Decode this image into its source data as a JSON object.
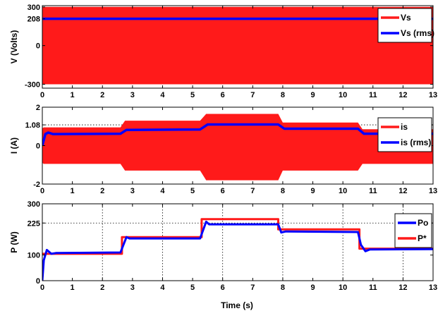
{
  "chart_data": [
    {
      "type": "line",
      "ylabel": "V (Volts)",
      "xlim": [
        0,
        13
      ],
      "ylim": [
        -330,
        310
      ],
      "xticks": [
        0,
        1,
        2,
        3,
        4,
        5,
        6,
        7,
        8,
        9,
        10,
        11,
        12,
        13
      ],
      "yticks": [
        -300,
        0,
        208,
        300
      ],
      "grid_y": [
        208
      ],
      "legend": "top-right",
      "colors": {
        "Vs": "#ff1a1a",
        "Vs (rms)": "#0000ff"
      },
      "series": [
        {
          "name": "Vs",
          "kind": "envelope",
          "x": [
            0,
            13
          ],
          "upper": [
            300,
            300
          ],
          "lower": [
            -300,
            -300
          ]
        },
        {
          "name": "Vs (rms)",
          "x": [
            0,
            13
          ],
          "y": [
            208,
            208
          ]
        }
      ]
    },
    {
      "type": "line",
      "ylabel": "I (A)",
      "xlim": [
        0,
        13
      ],
      "ylim": [
        -2,
        2
      ],
      "xticks": [
        0,
        1,
        2,
        3,
        4,
        5,
        6,
        7,
        8,
        9,
        10,
        11,
        12,
        13
      ],
      "yticks": [
        -2,
        0,
        1.08,
        2
      ],
      "grid_y": [
        1.08
      ],
      "legend": "top-right",
      "colors": {
        "is": "#ff1a1a",
        "is (rms)": "#0000ff"
      },
      "series": [
        {
          "name": "is",
          "kind": "envelope",
          "x": [
            0,
            0.05,
            2.6,
            2.75,
            5.25,
            5.45,
            7.85,
            8.0,
            10.5,
            10.65,
            13
          ],
          "upper": [
            0.9,
            0.95,
            0.95,
            1.3,
            1.3,
            1.65,
            1.65,
            1.2,
            1.2,
            0.85,
            0.85
          ],
          "lower": [
            -0.9,
            -0.95,
            -0.95,
            -1.3,
            -1.3,
            -1.8,
            -1.8,
            -1.3,
            -1.3,
            -0.95,
            -0.95
          ]
        },
        {
          "name": "is (rms)",
          "x": [
            0,
            0.1,
            0.2,
            0.35,
            2.6,
            2.8,
            5.25,
            5.5,
            7.85,
            8.05,
            10.5,
            10.7,
            13
          ],
          "y": [
            0.0,
            0.6,
            0.68,
            0.6,
            0.62,
            0.82,
            0.84,
            1.1,
            1.1,
            0.88,
            0.88,
            0.62,
            0.62
          ]
        }
      ]
    },
    {
      "type": "line",
      "ylabel": "P (W)",
      "xlabel": "Time (s)",
      "xlim": [
        0,
        13
      ],
      "ylim": [
        0,
        300
      ],
      "xticks": [
        0,
        1,
        2,
        3,
        4,
        5,
        6,
        7,
        8,
        9,
        10,
        11,
        12,
        13
      ],
      "yticks": [
        0,
        100,
        225,
        300
      ],
      "grid_y": [
        225
      ],
      "grid_x": [
        2,
        4,
        6,
        8,
        10,
        12
      ],
      "legend": "top-right",
      "colors": {
        "Po": "#0000ff",
        "P*": "#ff1a1a"
      },
      "series": [
        {
          "name": "Po",
          "x": [
            0,
            0.05,
            0.15,
            0.3,
            0.45,
            2.6,
            2.8,
            2.9,
            5.25,
            5.45,
            5.55,
            7.85,
            7.95,
            8.1,
            10.5,
            10.6,
            10.75,
            10.9,
            13
          ],
          "y": [
            0,
            80,
            120,
            105,
            108,
            110,
            170,
            165,
            165,
            230,
            220,
            220,
            188,
            192,
            190,
            140,
            115,
            122,
            123
          ]
        },
        {
          "name": "P*",
          "x": [
            0,
            2.65,
            2.65,
            5.3,
            5.3,
            7.85,
            7.85,
            10.55,
            10.55,
            13
          ],
          "y": [
            105,
            105,
            170,
            170,
            240,
            240,
            200,
            200,
            125,
            125
          ]
        }
      ]
    }
  ]
}
